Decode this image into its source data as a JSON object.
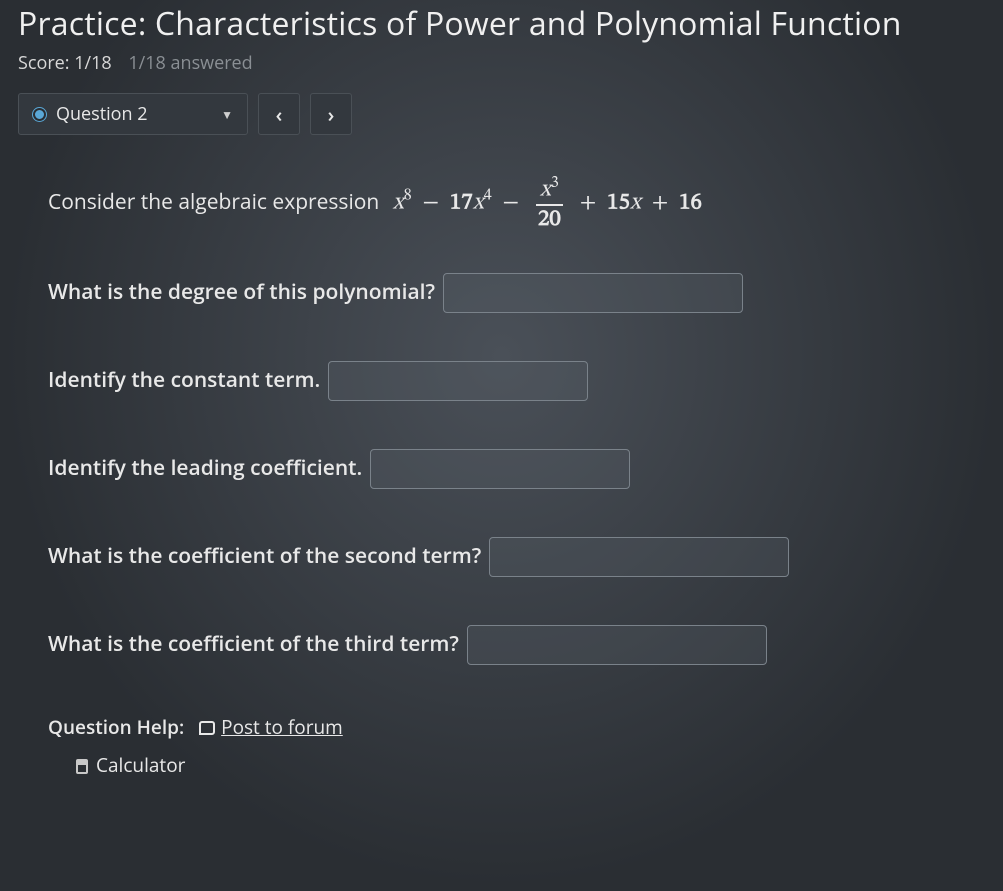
{
  "header": {
    "title": "Practice: Characteristics of Power and Polynomial Function",
    "score_label": "Score:",
    "score_value": "1/18",
    "answered": "1/18 answered"
  },
  "nav": {
    "question_label": "Question 2"
  },
  "expression": {
    "lead_text": "Consider the algebraic expression",
    "term1_base": "x",
    "term1_exp": "8",
    "op1": "−",
    "term2_coef": "17",
    "term2_base": "x",
    "term2_exp": "4",
    "op2": "−",
    "frac_num_base": "x",
    "frac_num_exp": "3",
    "frac_den": "20",
    "op3": "+",
    "term4_coef": "15",
    "term4_base": "x",
    "op4": "+",
    "term5": "16"
  },
  "questions": {
    "q1": "What is the degree of this polynomial?",
    "q2": "Identify the constant term.",
    "q3": "Identify the leading coefficient.",
    "q4": "What is the coefficient of the second term?",
    "q5": "What is the coefficient of the third term?"
  },
  "help": {
    "label": "Question Help:",
    "forum": "Post to forum",
    "calculator": "Calculator"
  },
  "style": {
    "bg": "#2a2e33",
    "text": "#e8e8e8",
    "muted": "#8a8f94",
    "input_border": "#7a828a",
    "accent_dot": "#5aa7d6"
  }
}
